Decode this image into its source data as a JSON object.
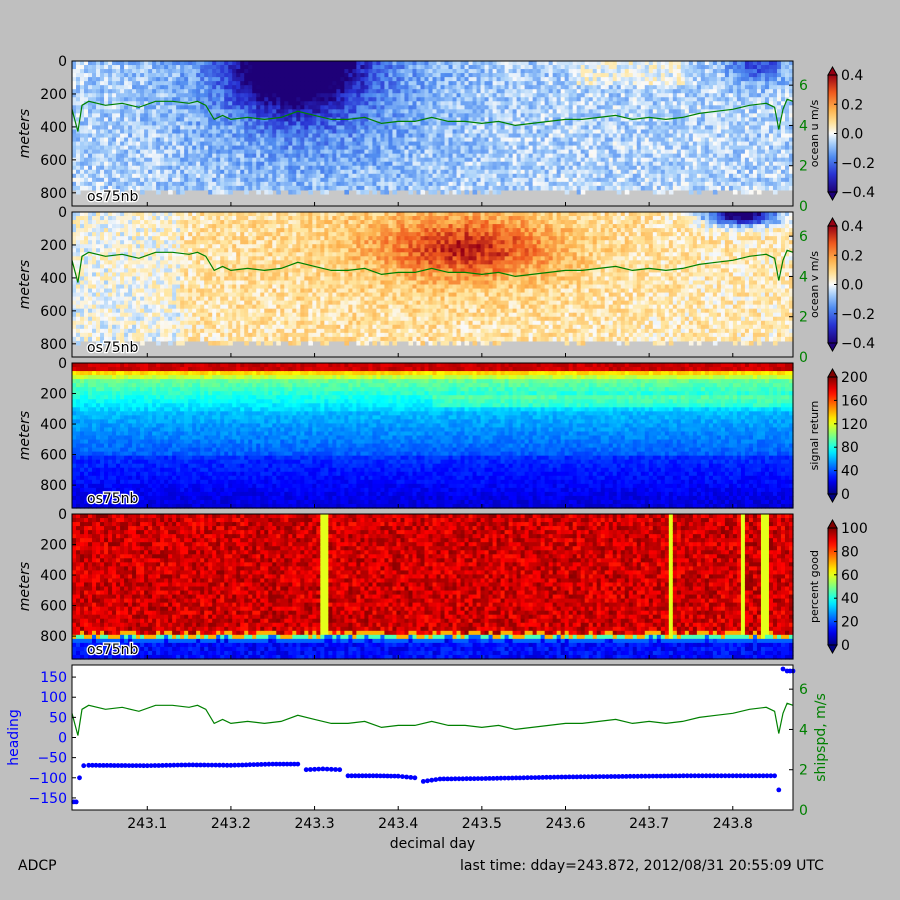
{
  "footer": {
    "left": "ADCP",
    "right": "last time: dday=243.872,  2012/08/31 20:55:09 UTC"
  },
  "chart_data": [
    {
      "type": "heatmap",
      "ylabel": "meters",
      "yticks": [
        "0",
        "200",
        "400",
        "600",
        "800"
      ],
      "ylim": [
        0,
        880
      ],
      "annotation": "os75nb",
      "colorbar": {
        "label": "ocean u m/s",
        "ticks": [
          "0.4",
          "0.2",
          "0.0",
          "−0.2",
          "−0.4"
        ],
        "range": [
          -0.4,
          0.4
        ],
        "colormap": "blue-white-red"
      },
      "right_axis": {
        "ticks": [
          "0",
          "2",
          "4",
          "6"
        ],
        "range": [
          0,
          7.2
        ],
        "color": "#008000"
      },
      "overlay_series": "shipspd"
    },
    {
      "type": "heatmap",
      "ylabel": "meters",
      "yticks": [
        "0",
        "200",
        "400",
        "600",
        "800"
      ],
      "ylim": [
        0,
        880
      ],
      "annotation": "os75nb",
      "colorbar": {
        "label": "ocean v m/s",
        "ticks": [
          "0.4",
          "0.2",
          "0.0",
          "−0.2",
          "−0.4"
        ],
        "range": [
          -0.4,
          0.4
        ],
        "colormap": "blue-white-red"
      },
      "right_axis": {
        "ticks": [
          "0",
          "2",
          "4",
          "6"
        ],
        "range": [
          0,
          7.2
        ],
        "color": "#008000"
      },
      "overlay_series": "shipspd"
    },
    {
      "type": "heatmap",
      "ylabel": "meters",
      "yticks": [
        "0",
        "200",
        "400",
        "600",
        "800"
      ],
      "ylim": [
        0,
        950
      ],
      "annotation": "os75nb",
      "colorbar": {
        "label": "signal return",
        "ticks": [
          "200",
          "160",
          "120",
          "80",
          "40",
          "0"
        ],
        "range": [
          0,
          200
        ],
        "colormap": "jet"
      }
    },
    {
      "type": "heatmap",
      "ylabel": "meters",
      "yticks": [
        "0",
        "200",
        "400",
        "600",
        "800"
      ],
      "ylim": [
        0,
        950
      ],
      "annotation": "os75nb",
      "colorbar": {
        "label": "percent good",
        "ticks": [
          "100",
          "80",
          "60",
          "40",
          "20",
          "0"
        ],
        "range": [
          0,
          100
        ],
        "colormap": "jet"
      }
    },
    {
      "type": "line",
      "xlabel": "decimal day",
      "xticks": [
        "243.1",
        "243.2",
        "243.3",
        "243.4",
        "243.5",
        "243.6",
        "243.7",
        "243.8"
      ],
      "xlim": [
        243.01,
        243.872
      ],
      "ylabel": "heading",
      "ylabel_color": "#0000ff",
      "yticks": [
        "150",
        "100",
        "50",
        "0",
        "−50",
        "−100",
        "−150"
      ],
      "ylim": [
        -180,
        180
      ],
      "right_ylabel": "shipspd, m/s",
      "right_ylabel_color": "#008000",
      "right_yticks": [
        "0",
        "2",
        "4",
        "6"
      ],
      "right_ylim": [
        0,
        7.2
      ],
      "series": [
        {
          "name": "heading",
          "color": "#0000ff",
          "style": "dots",
          "points": [
            [
              243.012,
              -160
            ],
            [
              243.015,
              -160
            ],
            [
              243.019,
              -100
            ],
            [
              243.024,
              -70
            ],
            [
              243.03,
              -69
            ],
            [
              243.1,
              -70
            ],
            [
              243.15,
              -68
            ],
            [
              243.2,
              -69
            ],
            [
              243.25,
              -66
            ],
            [
              243.28,
              -66
            ],
            [
              243.29,
              -80
            ],
            [
              243.31,
              -78
            ],
            [
              243.33,
              -80
            ],
            [
              243.34,
              -95
            ],
            [
              243.37,
              -95
            ],
            [
              243.4,
              -96
            ],
            [
              243.42,
              -100
            ],
            [
              243.43,
              -109
            ],
            [
              243.45,
              -103
            ],
            [
              243.5,
              -102
            ],
            [
              243.55,
              -100
            ],
            [
              243.6,
              -98
            ],
            [
              243.65,
              -97
            ],
            [
              243.7,
              -96
            ],
            [
              243.75,
              -95
            ],
            [
              243.8,
              -95
            ],
            [
              243.85,
              -95
            ],
            [
              243.855,
              -130
            ],
            [
              243.86,
              170
            ],
            [
              243.865,
              165
            ],
            [
              243.872,
              165
            ]
          ]
        },
        {
          "name": "shipspd",
          "color": "#008000",
          "style": "line",
          "points": [
            [
              243.01,
              4.8
            ],
            [
              243.017,
              3.7
            ],
            [
              243.022,
              5.0
            ],
            [
              243.03,
              5.2
            ],
            [
              243.05,
              5.0
            ],
            [
              243.07,
              5.1
            ],
            [
              243.09,
              4.9
            ],
            [
              243.11,
              5.2
            ],
            [
              243.13,
              5.2
            ],
            [
              243.15,
              5.1
            ],
            [
              243.16,
              5.2
            ],
            [
              243.17,
              5.0
            ],
            [
              243.18,
              4.3
            ],
            [
              243.19,
              4.5
            ],
            [
              243.2,
              4.3
            ],
            [
              243.22,
              4.4
            ],
            [
              243.24,
              4.3
            ],
            [
              243.26,
              4.4
            ],
            [
              243.28,
              4.7
            ],
            [
              243.3,
              4.5
            ],
            [
              243.32,
              4.3
            ],
            [
              243.34,
              4.3
            ],
            [
              243.36,
              4.4
            ],
            [
              243.38,
              4.1
            ],
            [
              243.4,
              4.2
            ],
            [
              243.42,
              4.2
            ],
            [
              243.44,
              4.4
            ],
            [
              243.46,
              4.2
            ],
            [
              243.48,
              4.2
            ],
            [
              243.5,
              4.1
            ],
            [
              243.52,
              4.2
            ],
            [
              243.54,
              4.0
            ],
            [
              243.56,
              4.1
            ],
            [
              243.58,
              4.2
            ],
            [
              243.6,
              4.3
            ],
            [
              243.62,
              4.3
            ],
            [
              243.64,
              4.4
            ],
            [
              243.66,
              4.5
            ],
            [
              243.68,
              4.3
            ],
            [
              243.7,
              4.4
            ],
            [
              243.72,
              4.3
            ],
            [
              243.74,
              4.4
            ],
            [
              243.76,
              4.6
            ],
            [
              243.78,
              4.7
            ],
            [
              243.8,
              4.8
            ],
            [
              243.82,
              5.0
            ],
            [
              243.84,
              5.1
            ],
            [
              243.85,
              4.9
            ],
            [
              243.855,
              3.8
            ],
            [
              243.86,
              4.8
            ],
            [
              243.865,
              5.3
            ],
            [
              243.872,
              5.2
            ]
          ]
        }
      ]
    }
  ]
}
